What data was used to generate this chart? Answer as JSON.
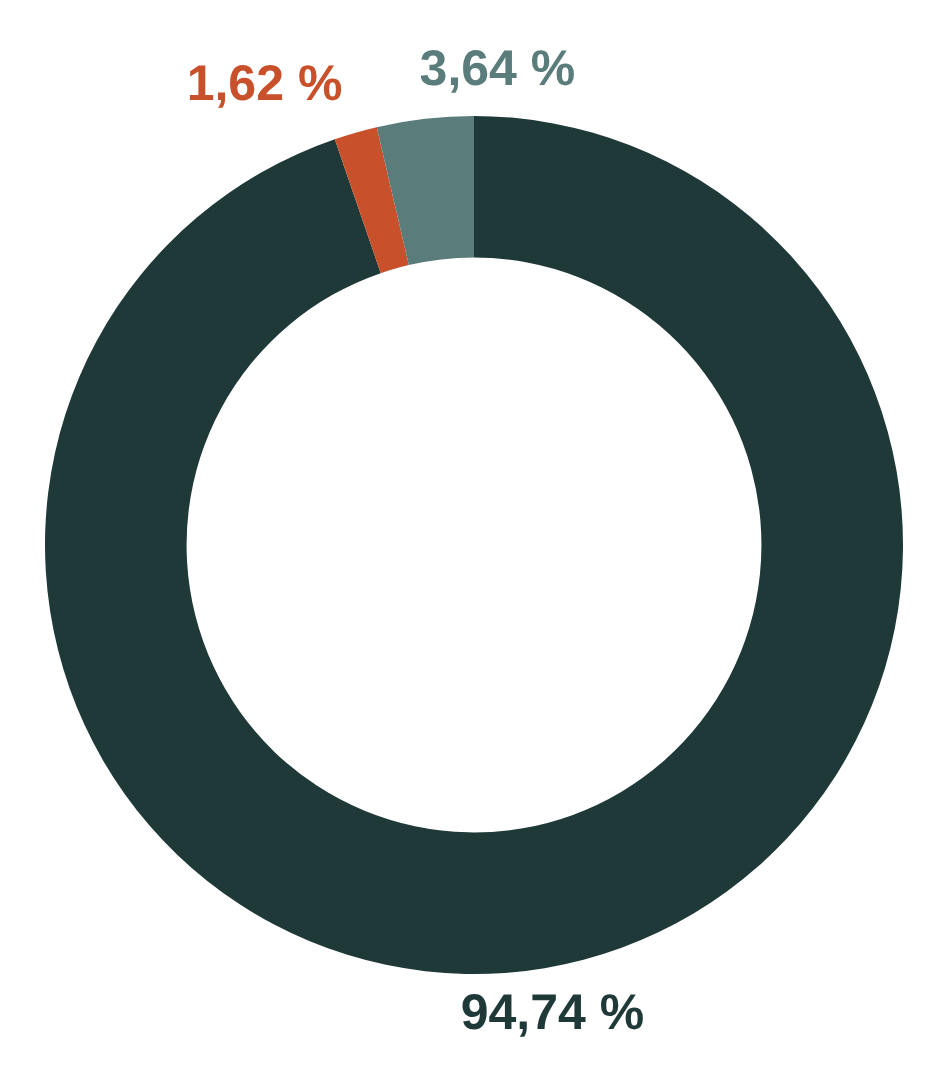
{
  "chart_data": {
    "type": "donut",
    "categories": [
      null,
      null,
      null
    ],
    "values": [
      94.74,
      1.62,
      3.64
    ],
    "colors": [
      "#1f3838",
      "#c8502a",
      "#5a7d7b"
    ],
    "value_labels": [
      "94,74 %",
      "1,62 %",
      "3,64 %"
    ],
    "legend": false
  }
}
